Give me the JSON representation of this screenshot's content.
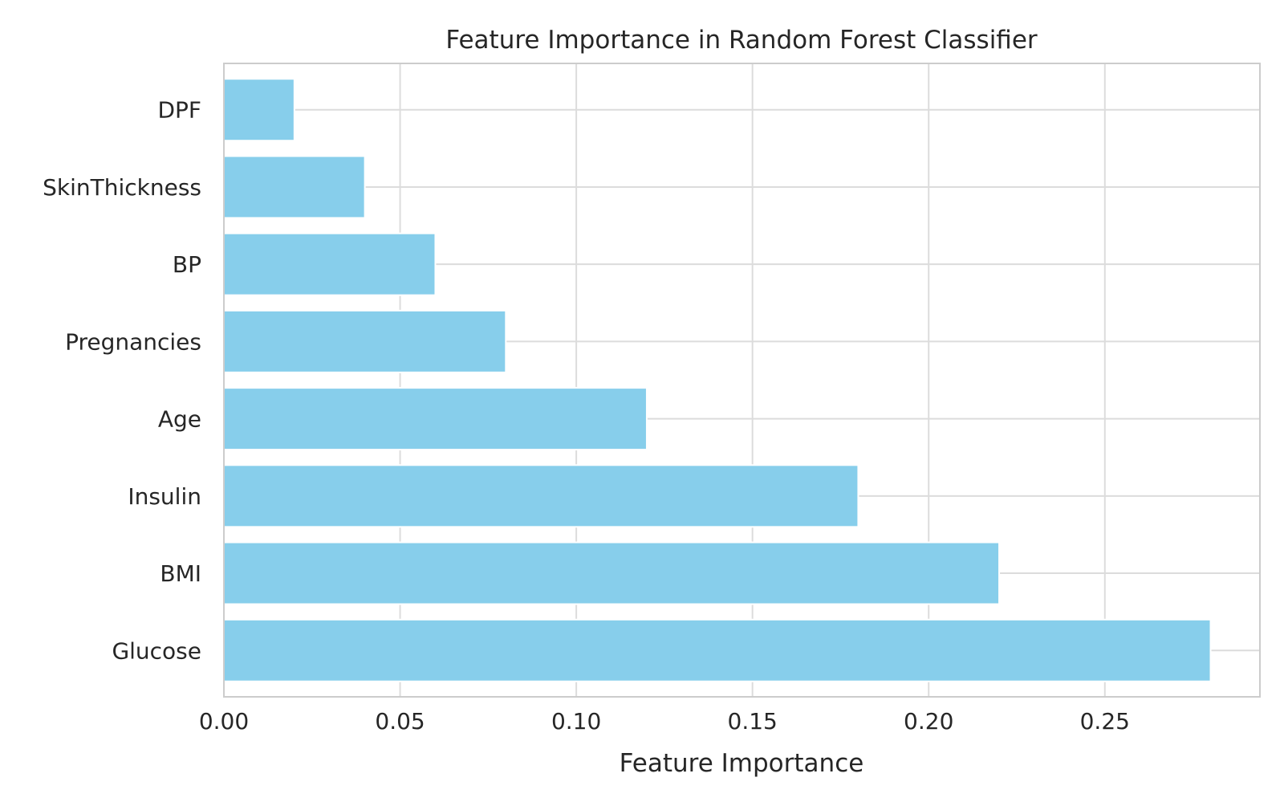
{
  "chart_data": {
    "type": "bar",
    "orientation": "horizontal",
    "title": "Feature Importance in Random Forest Classifier",
    "xlabel": "Feature Importance",
    "ylabel": "",
    "categories": [
      "Glucose",
      "BMI",
      "Insulin",
      "Age",
      "Pregnancies",
      "BP",
      "SkinThickness",
      "DPF"
    ],
    "values": [
      0.28,
      0.22,
      0.18,
      0.12,
      0.08,
      0.06,
      0.04,
      0.02
    ],
    "xlim": [
      0,
      0.294
    ],
    "xticks": [
      0.0,
      0.05,
      0.1,
      0.15,
      0.2,
      0.25
    ],
    "xtick_labels": [
      "0.00",
      "0.05",
      "0.10",
      "0.15",
      "0.20",
      "0.25"
    ],
    "grid": true,
    "legend": "none",
    "colors": {
      "bar": "#87ceeb",
      "grid": "#dcdcdc",
      "spine": "#cccccc",
      "text": "#262626"
    }
  }
}
